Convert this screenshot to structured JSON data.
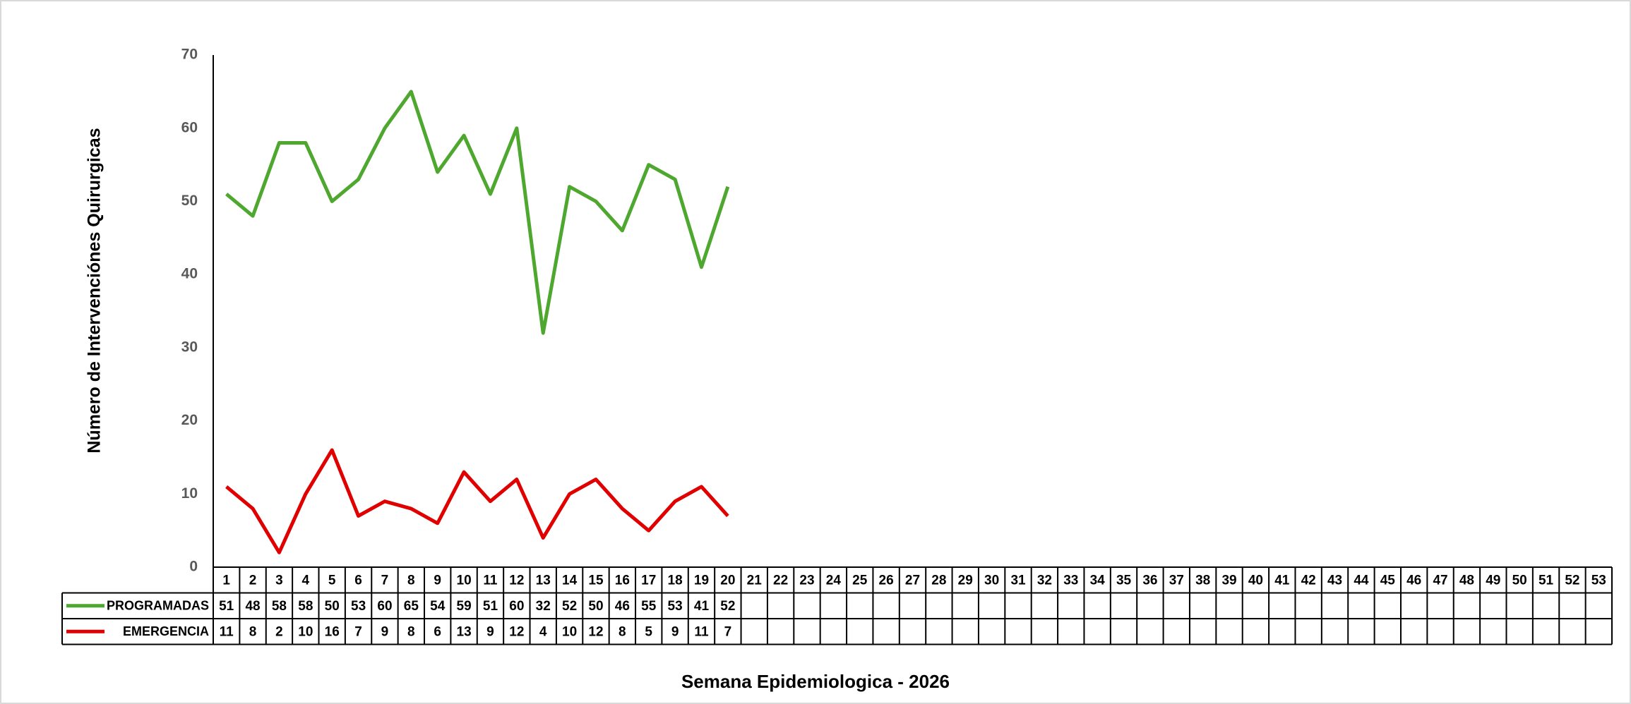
{
  "chart_data": {
    "type": "line",
    "x_label": "Semana Epidemiologica - 2026",
    "y_label": "Número de Intervenciónes Quirurgicas",
    "categories": [
      "1",
      "2",
      "3",
      "4",
      "5",
      "6",
      "7",
      "8",
      "9",
      "10",
      "11",
      "12",
      "13",
      "14",
      "15",
      "16",
      "17",
      "18",
      "19",
      "20",
      "21",
      "22",
      "23",
      "24",
      "25",
      "26",
      "27",
      "28",
      "29",
      "30",
      "31",
      "32",
      "33",
      "34",
      "35",
      "36",
      "37",
      "38",
      "39",
      "40",
      "41",
      "42",
      "43",
      "44",
      "45",
      "46",
      "47",
      "48",
      "49",
      "50",
      "51",
      "52",
      "53"
    ],
    "series": [
      {
        "name": "PROGRAMADAS",
        "color": "#4ea72e",
        "values": [
          51,
          48,
          58,
          58,
          50,
          53,
          60,
          65,
          54,
          59,
          51,
          60,
          32,
          52,
          50,
          46,
          55,
          53,
          41,
          52,
          null,
          null,
          null,
          null,
          null,
          null,
          null,
          null,
          null,
          null,
          null,
          null,
          null,
          null,
          null,
          null,
          null,
          null,
          null,
          null,
          null,
          null,
          null,
          null,
          null,
          null,
          null,
          null,
          null,
          null,
          null,
          null,
          null
        ]
      },
      {
        "name": "EMERGENCIA",
        "color": "#e00000",
        "values": [
          11,
          8,
          2,
          10,
          16,
          7,
          9,
          8,
          6,
          13,
          9,
          12,
          4,
          10,
          12,
          8,
          5,
          9,
          11,
          7,
          null,
          null,
          null,
          null,
          null,
          null,
          null,
          null,
          null,
          null,
          null,
          null,
          null,
          null,
          null,
          null,
          null,
          null,
          null,
          null,
          null,
          null,
          null,
          null,
          null,
          null,
          null,
          null,
          null,
          null,
          null,
          null,
          null
        ]
      }
    ],
    "ylim": [
      0,
      70
    ],
    "yticks": [
      0,
      10,
      20,
      30,
      40,
      50,
      60,
      70
    ],
    "grid": false
  }
}
